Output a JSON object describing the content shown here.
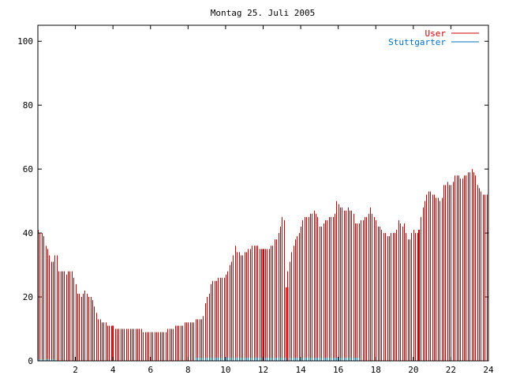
{
  "chart_data": {
    "type": "bar",
    "title": "Montag 25. Juli 2005",
    "xlabel": "",
    "ylabel": "",
    "xlim": [
      0,
      24
    ],
    "ylim": [
      0,
      105
    ],
    "x_ticks": [
      "2",
      "4",
      "6",
      "8",
      "10",
      "12",
      "14",
      "16",
      "18",
      "20",
      "22",
      "24"
    ],
    "y_ticks": [
      "0",
      "20",
      "40",
      "60",
      "80",
      "100"
    ],
    "legend_position": "top-right",
    "step_hours": 0.1,
    "series": [
      {
        "name": "User",
        "color": "#cc0000",
        "values": [
          41,
          40,
          40,
          39,
          36,
          35,
          33,
          31,
          31,
          33,
          33,
          28,
          28,
          28,
          28,
          27,
          28,
          28,
          28,
          26,
          24,
          21,
          21,
          20,
          21,
          22,
          21,
          20,
          20,
          19,
          17,
          15,
          13,
          13,
          12,
          12,
          12,
          11,
          11,
          11,
          10,
          10,
          10,
          10,
          10,
          10,
          10,
          10,
          10,
          10,
          10,
          10,
          10,
          10,
          10,
          10,
          9,
          9,
          9,
          9,
          9,
          9,
          9,
          9,
          9,
          9,
          9,
          9,
          9,
          10,
          10,
          10,
          10,
          11,
          11,
          11,
          11,
          11,
          12,
          12,
          12,
          12,
          12,
          12,
          13,
          13,
          13,
          13,
          14,
          18,
          20,
          21,
          24,
          25,
          25,
          25,
          26,
          26,
          26,
          26,
          27,
          28,
          30,
          31,
          33,
          36,
          34,
          34,
          33,
          33,
          34,
          34,
          35,
          35,
          36,
          36,
          36,
          36,
          35,
          35,
          35,
          35,
          35,
          35,
          36,
          36,
          38,
          38,
          40,
          42,
          45,
          44,
          23,
          28,
          31,
          34,
          36,
          38,
          39,
          40,
          42,
          44,
          45,
          45,
          45,
          46,
          46,
          47,
          46,
          45,
          42,
          42,
          43,
          44,
          44,
          45,
          45,
          45,
          46,
          50,
          49,
          48,
          48,
          47,
          47,
          48,
          47,
          47,
          46,
          43,
          43,
          43,
          44,
          44,
          45,
          45,
          46,
          48,
          46,
          45,
          44,
          42,
          42,
          41,
          40,
          40,
          39,
          39,
          40,
          40,
          40,
          41,
          44,
          43,
          42,
          43,
          40,
          38,
          38,
          40,
          41,
          40,
          40,
          41,
          45,
          48,
          50,
          52,
          53,
          53,
          52,
          52,
          51,
          51,
          50,
          51,
          55,
          55,
          56,
          55,
          55,
          56,
          58,
          58,
          58,
          57,
          57,
          58,
          58,
          59,
          59,
          60,
          59,
          58,
          55,
          54,
          53,
          52,
          52,
          52
        ]
      },
      {
        "name": "Stuttgarter",
        "color": "#0070c0",
        "values": [
          0.5,
          0.5,
          0.5,
          0.5,
          0.5,
          0.5,
          0.5,
          0.5,
          0.5,
          0.5,
          0,
          0,
          0,
          0,
          0,
          0,
          0,
          0,
          0,
          0,
          0,
          0,
          0,
          0,
          0,
          0,
          0,
          0,
          0,
          0,
          0,
          0,
          0,
          0,
          0,
          0,
          0,
          0,
          0,
          0,
          0,
          0,
          0,
          0,
          0,
          0,
          0,
          0,
          0,
          0,
          0,
          0,
          0,
          0,
          0,
          0,
          0,
          0,
          0,
          0,
          0,
          0,
          0,
          0,
          0,
          0,
          0,
          0,
          0,
          0,
          0,
          0,
          0,
          0,
          0,
          0,
          0,
          0,
          0,
          0,
          0,
          0,
          0,
          0,
          1,
          1,
          1,
          1,
          1,
          1,
          1,
          1,
          1,
          1,
          1,
          1,
          1,
          1,
          1,
          1,
          1,
          1,
          1,
          1,
          1,
          1,
          1,
          1,
          1,
          1,
          1,
          1,
          1,
          1,
          1,
          1,
          1,
          1,
          1,
          1,
          1,
          1,
          1,
          1,
          1,
          1,
          1,
          1,
          1,
          1,
          1,
          1,
          1,
          1,
          1,
          1,
          1,
          1,
          1,
          1,
          1,
          1,
          1,
          1,
          1,
          1,
          1,
          1,
          1,
          1,
          1,
          1,
          1,
          1,
          1,
          1,
          1,
          1,
          1,
          1,
          1,
          1,
          1,
          1,
          1,
          1,
          1,
          1,
          1,
          1,
          1,
          1,
          0,
          0,
          0,
          0,
          0,
          0,
          0,
          0,
          0,
          0,
          0,
          0,
          0,
          0,
          0,
          0,
          0,
          0,
          0,
          0,
          0,
          0,
          0,
          0,
          0,
          0,
          0,
          0,
          0,
          0,
          0,
          0,
          0,
          0,
          0,
          0,
          0,
          0,
          0,
          0,
          0,
          0,
          0,
          0,
          0,
          0,
          0,
          0,
          0,
          0,
          0,
          0,
          0,
          0,
          0,
          0,
          0,
          0,
          0,
          0,
          0,
          0,
          0,
          0,
          0,
          0,
          0,
          0
        ]
      }
    ],
    "highlighted_points": [
      {
        "x": 4.0,
        "y": 11,
        "series": "User"
      },
      {
        "x": 12.0,
        "y": 35,
        "series": "User"
      },
      {
        "x": 13.3,
        "y": 23,
        "series": "User"
      },
      {
        "x": 20.3,
        "y": 41,
        "series": "User"
      }
    ]
  }
}
